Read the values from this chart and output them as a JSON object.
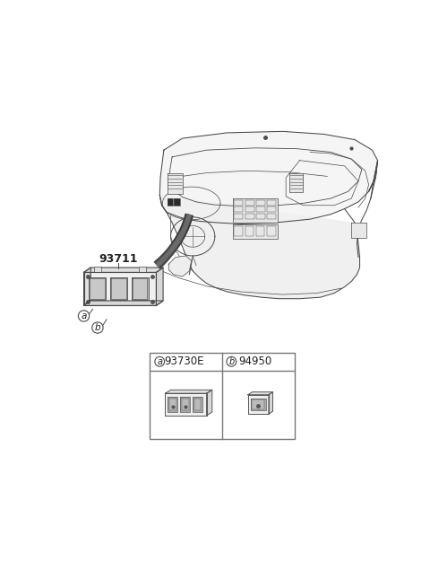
{
  "background_color": "#ffffff",
  "fig_width": 4.8,
  "fig_height": 6.55,
  "dpi": 100,
  "part_number_label": "93711",
  "label_a": "a",
  "label_b": "b",
  "table_label_a": "a",
  "table_label_b": "b",
  "table_part_a": "93730E",
  "table_part_b": "94950",
  "line_color": "#4a4a4a",
  "text_color": "#222222",
  "table_border_color": "#777777",
  "part_number_color": "#222222",
  "arrow_line_color": "#555555"
}
